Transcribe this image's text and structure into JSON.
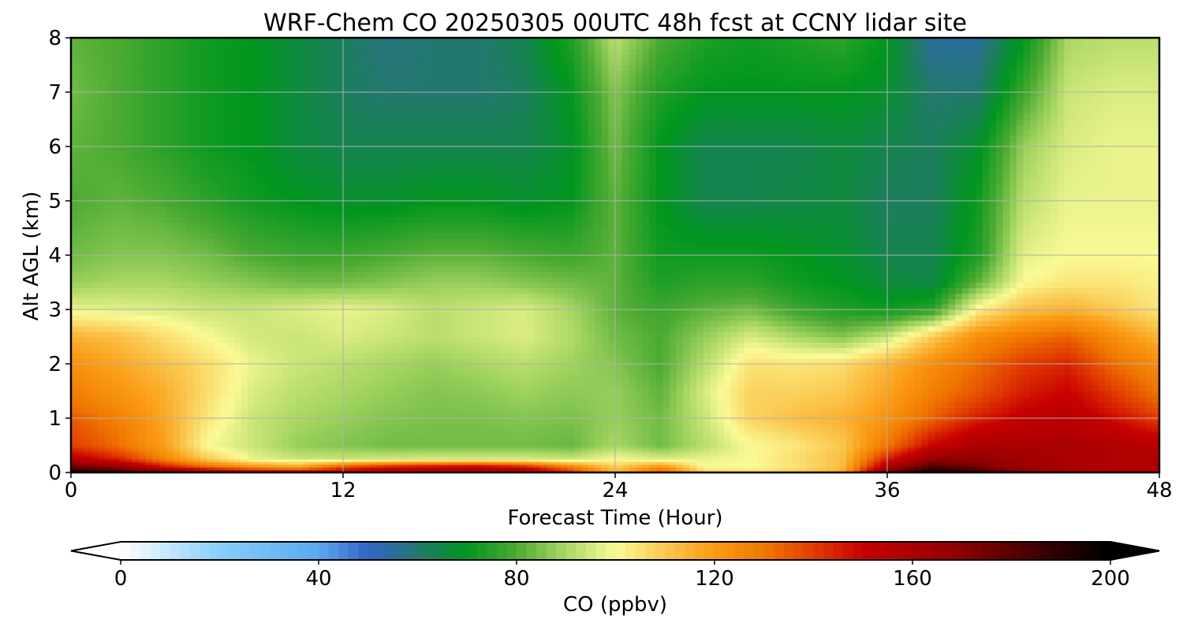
{
  "chart_data": {
    "type": "heatmap",
    "title": "WRF-Chem CO  20250305 00UTC 48h fcst at CCNY lidar site",
    "xlabel": "Forecast Time (Hour)",
    "ylabel": "Alt AGL (km)",
    "xlim": [
      0,
      48
    ],
    "ylim": [
      0,
      8
    ],
    "xticks": [
      0,
      12,
      24,
      36,
      48
    ],
    "yticks": [
      0,
      1,
      2,
      3,
      4,
      5,
      6,
      7,
      8
    ],
    "grid": true,
    "colorbar": {
      "label": "CO  (ppbv)",
      "range": [
        0,
        200
      ],
      "ticks": [
        0,
        40,
        80,
        120,
        160,
        200
      ],
      "extend": "both",
      "orientation": "horizontal",
      "stops": [
        {
          "value": 0,
          "color": "#ffffff"
        },
        {
          "value": 20,
          "color": "#87cefa"
        },
        {
          "value": 40,
          "color": "#5aaaf0"
        },
        {
          "value": 50,
          "color": "#3264c8"
        },
        {
          "value": 60,
          "color": "#23786e"
        },
        {
          "value": 70,
          "color": "#00961e"
        },
        {
          "value": 80,
          "color": "#4baa32"
        },
        {
          "value": 90,
          "color": "#aad764"
        },
        {
          "value": 100,
          "color": "#fafa96"
        },
        {
          "value": 110,
          "color": "#fac850"
        },
        {
          "value": 120,
          "color": "#fa9b14"
        },
        {
          "value": 130,
          "color": "#f07800"
        },
        {
          "value": 140,
          "color": "#e13c00"
        },
        {
          "value": 150,
          "color": "#c80000"
        },
        {
          "value": 160,
          "color": "#aa0000"
        },
        {
          "value": 170,
          "color": "#8c0000"
        },
        {
          "value": 180,
          "color": "#5a0000"
        },
        {
          "value": 190,
          "color": "#280000"
        },
        {
          "value": 200,
          "color": "#000000"
        }
      ]
    },
    "x": [
      0,
      2,
      4,
      6,
      8,
      10,
      12,
      14,
      16,
      18,
      20,
      22,
      24,
      26,
      28,
      30,
      32,
      34,
      36,
      38,
      40,
      42,
      44,
      46,
      48
    ],
    "y": [
      0,
      0.1,
      0.25,
      0.5,
      1,
      1.5,
      2,
      2.5,
      3,
      3.5,
      4,
      5,
      6,
      7,
      8
    ],
    "z": [
      [
        195,
        192,
        185,
        175,
        165,
        160,
        158,
        158,
        160,
        160,
        162,
        145,
        115,
        135,
        110,
        108,
        112,
        118,
        180,
        198,
        190,
        175,
        165,
        160,
        158
      ],
      [
        180,
        170,
        150,
        135,
        125,
        120,
        140,
        150,
        155,
        158,
        150,
        130,
        110,
        125,
        100,
        100,
        104,
        112,
        160,
        185,
        175,
        165,
        160,
        158,
        158
      ],
      [
        155,
        145,
        128,
        110,
        98,
        94,
        94,
        95,
        96,
        96,
        96,
        94,
        100,
        96,
        98,
        100,
        106,
        112,
        145,
        168,
        168,
        162,
        160,
        158,
        158
      ],
      [
        140,
        132,
        120,
        100,
        94,
        88,
        86,
        84,
        84,
        84,
        84,
        83,
        90,
        84,
        92,
        100,
        104,
        110,
        130,
        150,
        160,
        160,
        160,
        158,
        155
      ],
      [
        135,
        128,
        118,
        104,
        94,
        90,
        88,
        86,
        85,
        85,
        86,
        85,
        88,
        84,
        94,
        108,
        112,
        115,
        122,
        134,
        145,
        152,
        155,
        148,
        140
      ],
      [
        128,
        122,
        116,
        106,
        96,
        92,
        90,
        88,
        86,
        87,
        89,
        87,
        88,
        82,
        96,
        108,
        108,
        110,
        118,
        128,
        136,
        145,
        150,
        140,
        130
      ],
      [
        123,
        118,
        112,
        106,
        98,
        94,
        92,
        90,
        88,
        90,
        92,
        89,
        86,
        80,
        92,
        105,
        104,
        106,
        114,
        124,
        132,
        140,
        144,
        132,
        124
      ],
      [
        115,
        112,
        106,
        100,
        95,
        94,
        96,
        94,
        92,
        94,
        96,
        91,
        84,
        80,
        88,
        96,
        90,
        86,
        94,
        110,
        124,
        130,
        134,
        124,
        114
      ],
      [
        98,
        97,
        96,
        94,
        94,
        96,
        98,
        96,
        92,
        94,
        96,
        90,
        82,
        78,
        82,
        84,
        78,
        74,
        72,
        76,
        102,
        112,
        115,
        110,
        104
      ],
      [
        88,
        90,
        90,
        88,
        86,
        84,
        84,
        86,
        88,
        88,
        86,
        84,
        82,
        74,
        76,
        76,
        72,
        70,
        66,
        65,
        82,
        100,
        104,
        104,
        102
      ],
      [
        84,
        86,
        86,
        84,
        80,
        78,
        78,
        80,
        82,
        82,
        80,
        78,
        82,
        72,
        72,
        72,
        70,
        68,
        64,
        64,
        74,
        97,
        100,
        100,
        100
      ],
      [
        80,
        82,
        80,
        76,
        72,
        70,
        68,
        68,
        70,
        70,
        68,
        70,
        82,
        70,
        64,
        64,
        65,
        66,
        62,
        62,
        72,
        92,
        98,
        98,
        98
      ],
      [
        82,
        80,
        76,
        72,
        70,
        66,
        64,
        64,
        64,
        64,
        64,
        68,
        84,
        70,
        64,
        64,
        64,
        66,
        64,
        62,
        68,
        88,
        96,
        98,
        98
      ],
      [
        84,
        80,
        76,
        72,
        70,
        66,
        62,
        60,
        60,
        60,
        62,
        70,
        86,
        74,
        70,
        70,
        70,
        70,
        68,
        60,
        60,
        78,
        94,
        96,
        96
      ],
      [
        82,
        80,
        76,
        72,
        70,
        66,
        62,
        58,
        60,
        60,
        64,
        74,
        92,
        80,
        74,
        72,
        74,
        76,
        70,
        55,
        55,
        70,
        90,
        92,
        92
      ]
    ]
  }
}
